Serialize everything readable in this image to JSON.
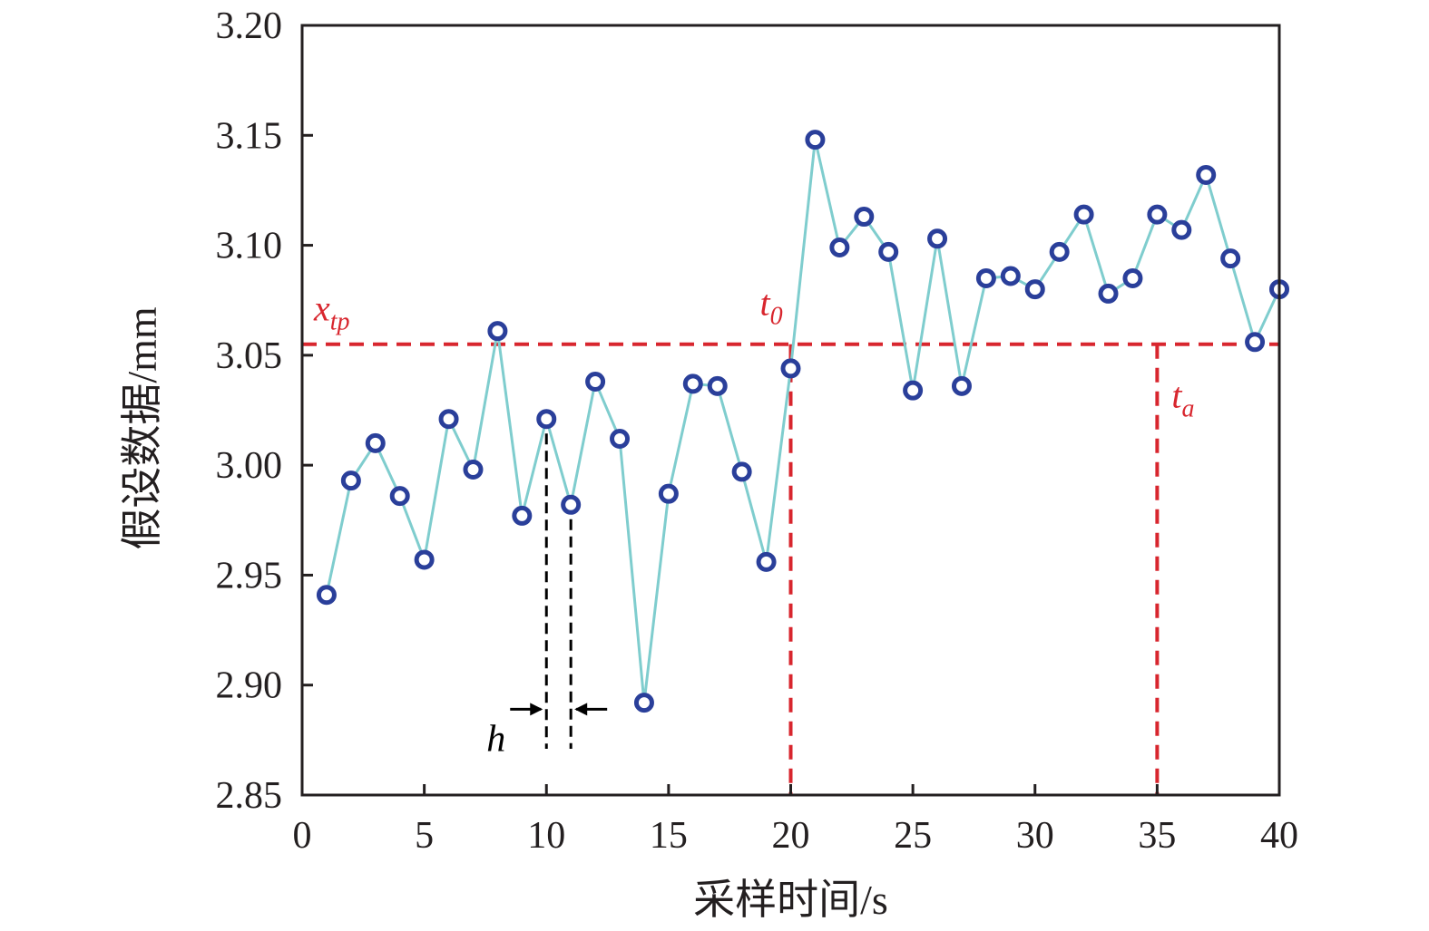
{
  "chart_data": {
    "type": "line",
    "title": "",
    "xlabel": "采样时间/s",
    "ylabel": "假设数据/mm",
    "xlim": [
      0,
      40
    ],
    "ylim": [
      2.85,
      3.2
    ],
    "xticks": [
      "0",
      "5",
      "10",
      "15",
      "20",
      "25",
      "30",
      "35",
      "40"
    ],
    "yticks": [
      "2.85",
      "2.90",
      "2.95",
      "3.00",
      "3.05",
      "3.10",
      "3.15",
      "3.20"
    ],
    "grid": false,
    "legend": "none",
    "series": [
      {
        "x": [
          1,
          2,
          3,
          4,
          5,
          6,
          7,
          8,
          9,
          10,
          11,
          12,
          13,
          14,
          15,
          16,
          17,
          18,
          19,
          20,
          21,
          22,
          23,
          24,
          25,
          26,
          27,
          28,
          29,
          30,
          31,
          32,
          33,
          34,
          35,
          36,
          37,
          38,
          39,
          40
        ],
        "values": [
          2.941,
          2.993,
          3.01,
          2.986,
          2.957,
          3.021,
          2.998,
          3.061,
          2.977,
          3.021,
          2.982,
          3.038,
          3.012,
          2.892,
          2.987,
          3.037,
          3.036,
          2.997,
          2.956,
          3.044,
          3.148,
          3.099,
          3.113,
          3.097,
          3.034,
          3.103,
          3.036,
          3.085,
          3.086,
          3.08,
          3.097,
          3.114,
          3.078,
          3.085,
          3.114,
          3.107,
          3.132,
          3.094,
          3.056,
          3.08
        ]
      }
    ],
    "annotations": {
      "threshold": {
        "value": 3.055,
        "label": "x",
        "label_sub": "tp"
      },
      "t0": {
        "x": 20,
        "label": "t",
        "label_sub": "0"
      },
      "ta": {
        "x": 35,
        "label": "t",
        "label_sub": "a"
      },
      "h": {
        "x_from": 10,
        "x_to": 11,
        "label": "h"
      }
    },
    "colors": {
      "line": "#7fcdce",
      "marker": "#2a3f9a",
      "threshold": "#d8262e",
      "frame": "#231f20"
    }
  }
}
